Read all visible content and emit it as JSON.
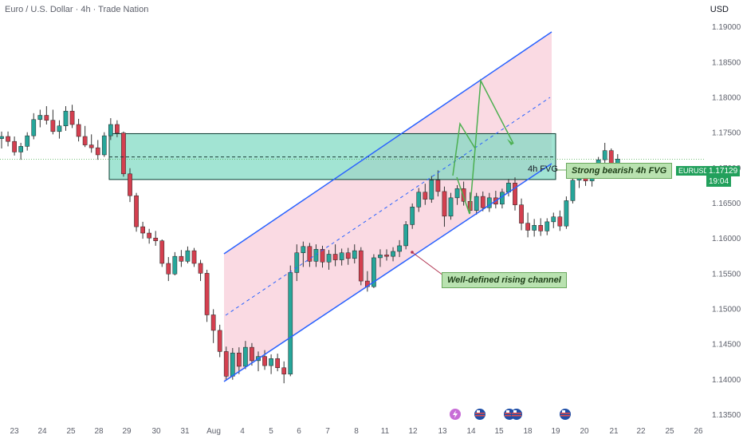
{
  "header": {
    "title": "Euro / U.S. Dollar · 4h · Trade Nation",
    "currency": "USD"
  },
  "annotations": {
    "fvg_label": "4h FVG",
    "fvg_callout": "Strong bearish 4h FVG",
    "channel_callout": "Well-defined rising channel"
  },
  "price_tag": {
    "symbol": "EURUSD",
    "price": "1.17129",
    "countdown": "19:04"
  },
  "colors": {
    "up": "#26a69a",
    "down": "#d43f4f",
    "channel": "#2962ff",
    "channel_fill": "#f9d4de",
    "fvg_fill": "#7ad9c0",
    "path": "#4caf50"
  },
  "events": [
    "lightning-icon",
    "us-flag-icon",
    "us-flag-icon",
    "us-flag-icon"
  ],
  "chart_data": {
    "type": "candlestick",
    "title": "Euro / U.S. Dollar · 4h · Trade Nation",
    "x_tick_labels": [
      "23",
      "24",
      "25",
      "28",
      "29",
      "30",
      "31",
      "Aug",
      "4",
      "5",
      "6",
      "7",
      "8",
      "11",
      "12",
      "13",
      "14",
      "15",
      "18",
      "19",
      "20",
      "21",
      "22",
      "25",
      "26"
    ],
    "y_tick_labels": [
      "1.19000",
      "1.18500",
      "1.18000",
      "1.17500",
      "1.17000",
      "1.16500",
      "1.16000",
      "1.15500",
      "1.15000",
      "1.14500",
      "1.14000",
      "1.13500"
    ],
    "ylim": [
      1.1325,
      1.1925
    ],
    "last_price": 1.17129,
    "fvg_zone": [
      1.1684,
      1.1749
    ],
    "ohlc": [
      [
        1.1742,
        1.1752,
        1.1728,
        1.1745
      ],
      [
        1.1745,
        1.1752,
        1.1731,
        1.1738
      ],
      [
        1.1738,
        1.1745,
        1.1718,
        1.1723
      ],
      [
        1.1723,
        1.1736,
        1.1712,
        1.1731
      ],
      [
        1.1731,
        1.1751,
        1.1725,
        1.1746
      ],
      [
        1.1746,
        1.1778,
        1.1741,
        1.1769
      ],
      [
        1.1769,
        1.1783,
        1.1758,
        1.1775
      ],
      [
        1.1775,
        1.1788,
        1.1762,
        1.1768
      ],
      [
        1.1768,
        1.1783,
        1.1748,
        1.1752
      ],
      [
        1.1752,
        1.1768,
        1.1742,
        1.176
      ],
      [
        1.176,
        1.1788,
        1.1753,
        1.1781
      ],
      [
        1.1781,
        1.179,
        1.1757,
        1.1762
      ],
      [
        1.1762,
        1.177,
        1.1738,
        1.1745
      ],
      [
        1.1745,
        1.176,
        1.173,
        1.1733
      ],
      [
        1.1733,
        1.1748,
        1.1722,
        1.1729
      ],
      [
        1.1729,
        1.174,
        1.1712,
        1.1719
      ],
      [
        1.1719,
        1.1751,
        1.1716,
        1.1746
      ],
      [
        1.1746,
        1.1771,
        1.174,
        1.1762
      ],
      [
        1.1762,
        1.1768,
        1.1744,
        1.175
      ],
      [
        1.175,
        1.1752,
        1.1688,
        1.1692
      ],
      [
        1.1692,
        1.17,
        1.1652,
        1.1661
      ],
      [
        1.1661,
        1.1665,
        1.161,
        1.1617
      ],
      [
        1.1617,
        1.1624,
        1.16,
        1.1608
      ],
      [
        1.1608,
        1.1614,
        1.1593,
        1.1601
      ],
      [
        1.1601,
        1.1611,
        1.159,
        1.1597
      ],
      [
        1.1597,
        1.1599,
        1.156,
        1.1565
      ],
      [
        1.1565,
        1.1574,
        1.154,
        1.155
      ],
      [
        1.155,
        1.1581,
        1.1548,
        1.1575
      ],
      [
        1.1575,
        1.1584,
        1.156,
        1.1568
      ],
      [
        1.1568,
        1.1589,
        1.1565,
        1.1583
      ],
      [
        1.1583,
        1.1587,
        1.156,
        1.1565
      ],
      [
        1.1565,
        1.157,
        1.154,
        1.1551
      ],
      [
        1.1551,
        1.1556,
        1.1482,
        1.1492
      ],
      [
        1.1492,
        1.15,
        1.1452,
        1.147
      ],
      [
        1.147,
        1.1478,
        1.1432,
        1.144
      ],
      [
        1.144,
        1.1447,
        1.14,
        1.1405
      ],
      [
        1.1405,
        1.1445,
        1.14,
        1.1438
      ],
      [
        1.1438,
        1.1446,
        1.1408,
        1.1419
      ],
      [
        1.1419,
        1.1455,
        1.1415,
        1.1446
      ],
      [
        1.1446,
        1.1452,
        1.142,
        1.1427
      ],
      [
        1.1427,
        1.144,
        1.1412,
        1.1433
      ],
      [
        1.1433,
        1.1442,
        1.1414,
        1.142
      ],
      [
        1.142,
        1.1436,
        1.1408,
        1.143
      ],
      [
        1.143,
        1.1437,
        1.1412,
        1.1417
      ],
      [
        1.1417,
        1.1426,
        1.1395,
        1.1408
      ],
      [
        1.1408,
        1.1562,
        1.1405,
        1.1552
      ],
      [
        1.1552,
        1.1592,
        1.154,
        1.158
      ],
      [
        1.158,
        1.1596,
        1.156,
        1.1589
      ],
      [
        1.1589,
        1.1594,
        1.156,
        1.1568
      ],
      [
        1.1568,
        1.1592,
        1.156,
        1.1585
      ],
      [
        1.1585,
        1.159,
        1.1559,
        1.1567
      ],
      [
        1.1567,
        1.1584,
        1.1556,
        1.1578
      ],
      [
        1.1578,
        1.1592,
        1.1561,
        1.157
      ],
      [
        1.157,
        1.1586,
        1.1562,
        1.158
      ],
      [
        1.158,
        1.1587,
        1.1563,
        1.1572
      ],
      [
        1.1572,
        1.1592,
        1.1565,
        1.1583
      ],
      [
        1.1583,
        1.1588,
        1.1534,
        1.154
      ],
      [
        1.154,
        1.1554,
        1.1525,
        1.1532
      ],
      [
        1.1532,
        1.1578,
        1.153,
        1.1573
      ],
      [
        1.1573,
        1.1585,
        1.156,
        1.1577
      ],
      [
        1.1577,
        1.1585,
        1.1569,
        1.1575
      ],
      [
        1.1575,
        1.1588,
        1.1568,
        1.1582
      ],
      [
        1.1582,
        1.1598,
        1.1574,
        1.159
      ],
      [
        1.159,
        1.1625,
        1.1585,
        1.162
      ],
      [
        1.162,
        1.165,
        1.1614,
        1.1645
      ],
      [
        1.1645,
        1.1672,
        1.1638,
        1.1666
      ],
      [
        1.1666,
        1.1678,
        1.1648,
        1.1656
      ],
      [
        1.1656,
        1.1689,
        1.1651,
        1.1683
      ],
      [
        1.1683,
        1.1697,
        1.166,
        1.1667
      ],
      [
        1.1667,
        1.1674,
        1.1617,
        1.1632
      ],
      [
        1.1632,
        1.1665,
        1.1627,
        1.1658
      ],
      [
        1.1658,
        1.1676,
        1.1648,
        1.1671
      ],
      [
        1.1671,
        1.1681,
        1.1647,
        1.1653
      ],
      [
        1.1653,
        1.1666,
        1.1636,
        1.164
      ],
      [
        1.164,
        1.1665,
        1.1634,
        1.166
      ],
      [
        1.166,
        1.1667,
        1.1639,
        1.1644
      ],
      [
        1.1644,
        1.1665,
        1.1638,
        1.1658
      ],
      [
        1.1658,
        1.1668,
        1.1643,
        1.1649
      ],
      [
        1.1649,
        1.1671,
        1.1643,
        1.1666
      ],
      [
        1.1666,
        1.1685,
        1.166,
        1.1679
      ],
      [
        1.1679,
        1.1687,
        1.164,
        1.1648
      ],
      [
        1.1648,
        1.1657,
        1.1612,
        1.1622
      ],
      [
        1.1622,
        1.1637,
        1.1602,
        1.1612
      ],
      [
        1.1612,
        1.1628,
        1.1603,
        1.1619
      ],
      [
        1.1619,
        1.1629,
        1.1604,
        1.1611
      ],
      [
        1.1611,
        1.1629,
        1.1605,
        1.1624
      ],
      [
        1.1624,
        1.1637,
        1.1615,
        1.1631
      ],
      [
        1.1631,
        1.164,
        1.1611,
        1.1618
      ],
      [
        1.1618,
        1.166,
        1.1614,
        1.1654
      ],
      [
        1.1654,
        1.169,
        1.165,
        1.1683
      ],
      [
        1.1683,
        1.1696,
        1.1672,
        1.1687
      ],
      [
        1.1687,
        1.1695,
        1.1675,
        1.1682
      ],
      [
        1.1682,
        1.1698,
        1.1674,
        1.1691
      ],
      [
        1.1691,
        1.1716,
        1.1686,
        1.1712
      ],
      [
        1.1712,
        1.1736,
        1.1704,
        1.1725
      ],
      [
        1.1725,
        1.1728,
        1.17,
        1.1703
      ],
      [
        1.1703,
        1.172,
        1.1697,
        1.1713
      ]
    ]
  }
}
